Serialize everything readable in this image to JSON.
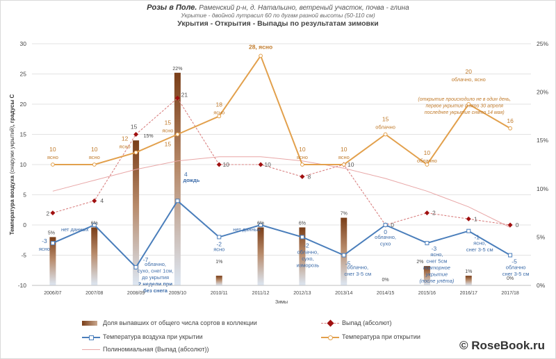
{
  "header": {
    "title_bold": "Розы в Поле.",
    "title_rest": " Раменский р-н, д. Натальино,  ветреный участок, почва - глина",
    "subtitle": "Укрытие - двойной лутрасил 60 по дугам разной высоты (50-110 см)",
    "chart_title": "Укрытия - Открытия - Выпады по результатам зимовки"
  },
  "watermark": "© RoseBook.ru",
  "chart_data": {
    "type": "bar",
    "categories": [
      "2006/07",
      "2007/08",
      "2008/09",
      "2009/10",
      "2010/11",
      "2011/12",
      "2012/13",
      "2013/14",
      "2014/15",
      "2015/16",
      "2016/17",
      "2017/18"
    ],
    "xlabel": "Зимы",
    "ylabel_bold": "Температура воздуха ",
    "ylabel_normal": "(снаружи укрытий)",
    "ylabel_tail": ", градусы С",
    "y_left": {
      "min": -10,
      "max": 30,
      "ticks": [
        "-10",
        "-5",
        "0",
        "5",
        "10",
        "15",
        "20",
        "25",
        "30"
      ]
    },
    "y_right": {
      "min": 0,
      "max": 25,
      "ticks": [
        "0%",
        "5%",
        "10%",
        "15%",
        "20%",
        "25%"
      ]
    },
    "grid": true,
    "legend_position": "bottom",
    "colors": {
      "bar_top": "#7a3e18",
      "bar_bottom": "#dde7f3",
      "cover": "#4a7ebb",
      "open": "#e2a04c",
      "loss": "#a01010",
      "loss_line": "#d98080",
      "poly": "#e8a6a6"
    },
    "series": [
      {
        "name": "Доля выпавших от общего числа сортов в коллекции",
        "kind": "bar",
        "values": [
          5,
          6,
          15,
          22,
          1,
          6,
          6,
          7,
          0,
          2,
          1,
          0
        ],
        "labels": [
          "5%",
          "6%",
          "15%",
          "22%",
          "1%",
          "6%",
          "6%",
          "7%",
          "0%",
          "2%",
          "1%",
          "0%"
        ]
      },
      {
        "name": "Выпад (абсолют)",
        "kind": "line",
        "values": [
          2,
          4,
          15,
          21,
          10,
          10,
          8,
          10,
          0,
          2,
          1,
          0
        ],
        "labels": [
          "2",
          "4",
          "15",
          "21",
          "10",
          "10",
          "8",
          "10",
          "0",
          "2",
          "1",
          "0"
        ]
      },
      {
        "name": "Температура воздуха при укрытии",
        "kind": "line",
        "values": [
          -3,
          0,
          -7,
          4,
          -2,
          0,
          -2,
          -5,
          0,
          -3,
          -1,
          -5
        ],
        "labels": [
          "-3",
          "",
          "-7",
          "4",
          "-2",
          "",
          "-2",
          "-5",
          "0",
          "-3",
          "-1",
          "-5"
        ]
      },
      {
        "name": "Температура при открытии",
        "kind": "line",
        "values": [
          10,
          10,
          12,
          15,
          18,
          28,
          10,
          10,
          15,
          10,
          20,
          16
        ],
        "labels": [
          "10",
          "10",
          "12",
          "15",
          "18",
          "28, ясно",
          "10",
          "10",
          "15",
          "10",
          "20",
          "16"
        ]
      },
      {
        "name": "Полиномиальная (Выпад (абсолют))",
        "kind": "trend"
      }
    ],
    "annotations": {
      "open_weather": [
        "ясно",
        "ясно",
        "ясно",
        "ясно",
        "ясно",
        "",
        "ясно",
        "ясно",
        "облачно",
        "облачно",
        "облачно, ясно",
        ""
      ],
      "open_note": [
        "(открытие происходило не в один день,",
        "первое укрытие снято 30 апреля",
        "последнее укрытие снято 14 мая)"
      ],
      "cover_notes": [
        [
          "ясно"
        ],
        [
          "нет данных"
        ],
        [
          "облачно,",
          "сухо, снег 1см,",
          "до укрытия",
          "2 недели при",
          "без снега"
        ],
        [
          "дождь"
        ],
        [
          "ясно"
        ],
        [
          "нет данных"
        ],
        [
          "облачно,",
          "сухо,",
          "изморозь"
        ],
        [
          "облачно,",
          "снег 3-5 см"
        ],
        [
          "облачно,",
          "сухо"
        ],
        [
          "ясно,",
          "снег 5см",
          "повторное",
          "укрытие",
          "(после улёта)"
        ],
        [
          "ясно,",
          "снег 3-5 см"
        ],
        [
          "облачно",
          "снег 3-5 см"
        ]
      ],
      "extra_label": "15"
    }
  }
}
